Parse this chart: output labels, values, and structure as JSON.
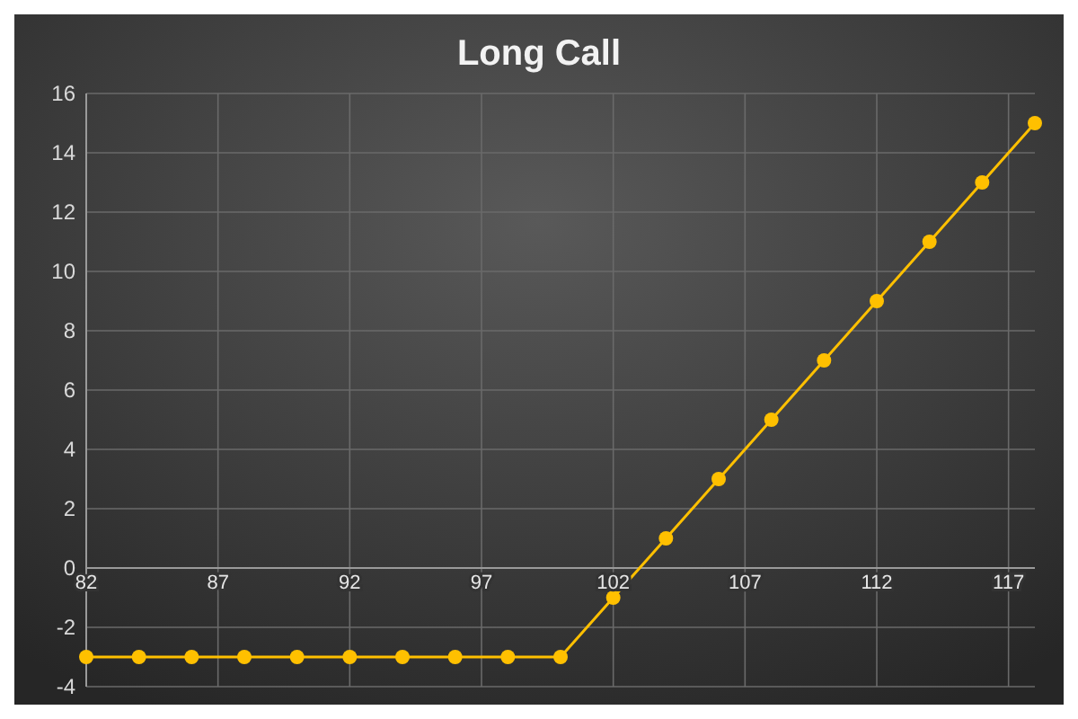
{
  "chart_data": {
    "type": "line",
    "title": "Long Call",
    "x": [
      82,
      84,
      86,
      88,
      90,
      92,
      94,
      96,
      98,
      100,
      102,
      104,
      106,
      108,
      110,
      112,
      114,
      116,
      118
    ],
    "series": [
      {
        "color": "#ffc000",
        "values": [
          -3,
          -3,
          -3,
          -3,
          -3,
          -3,
          -3,
          -3,
          -3,
          -3,
          -1,
          1,
          3,
          5,
          7,
          9,
          11,
          13,
          15
        ]
      }
    ],
    "xlim": [
      82,
      118
    ],
    "xticks": [
      82,
      87,
      92,
      97,
      102,
      107,
      112,
      117
    ],
    "ylim": [
      -4,
      16
    ],
    "yticks": [
      -4,
      -2,
      0,
      2,
      4,
      6,
      8,
      10,
      12,
      14,
      16
    ],
    "grid": true,
    "marker": "circle",
    "line_style": "solid"
  }
}
